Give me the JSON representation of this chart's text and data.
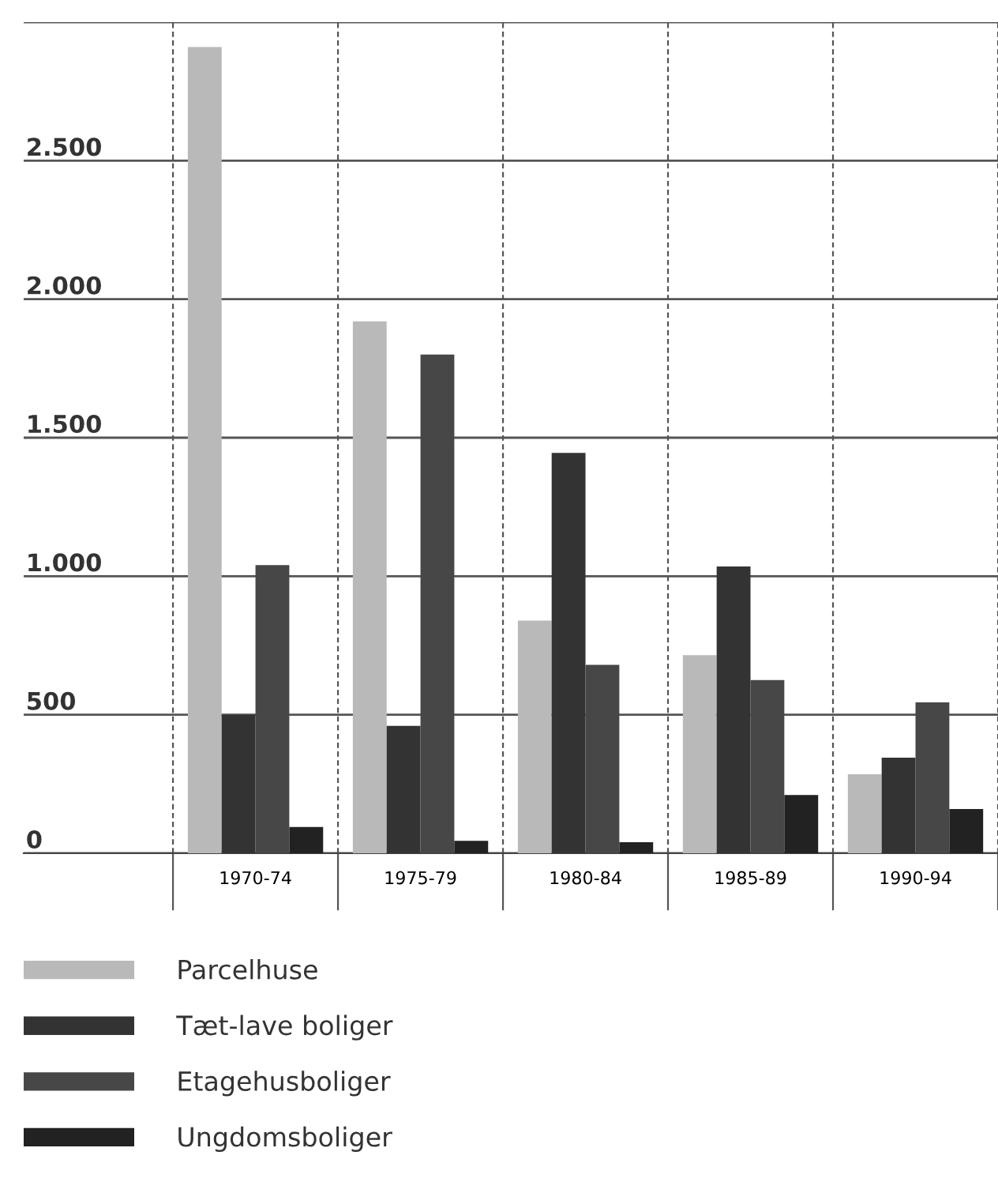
{
  "chart_data": {
    "type": "bar",
    "categories": [
      "1970-74",
      "1975-79",
      "1980-84",
      "1985-89",
      "1990-94"
    ],
    "series": [
      {
        "name": "Parcelhuse",
        "color": "#b9b9b9",
        "values": [
          2910,
          1920,
          840,
          715,
          285
        ]
      },
      {
        "name": "Tæt-lave boliger",
        "color": "#333333",
        "values": [
          500,
          460,
          1445,
          1035,
          345
        ]
      },
      {
        "name": "Etagehusboliger",
        "color": "#474747",
        "values": [
          1040,
          1800,
          680,
          625,
          545
        ]
      },
      {
        "name": "Ungdomsboliger",
        "color": "#222222",
        "values": [
          95,
          45,
          40,
          210,
          160
        ]
      }
    ],
    "ylim": [
      0,
      3000
    ],
    "yticks": [
      {
        "value": 0,
        "label": "0"
      },
      {
        "value": 500,
        "label": "500"
      },
      {
        "value": 1000,
        "label": "1.000"
      },
      {
        "value": 1500,
        "label": "1.500"
      },
      {
        "value": 2000,
        "label": "2.000"
      },
      {
        "value": 2500,
        "label": "2.500"
      },
      {
        "value": 3000,
        "label": null
      }
    ],
    "grid": true,
    "legend": "bottom"
  }
}
